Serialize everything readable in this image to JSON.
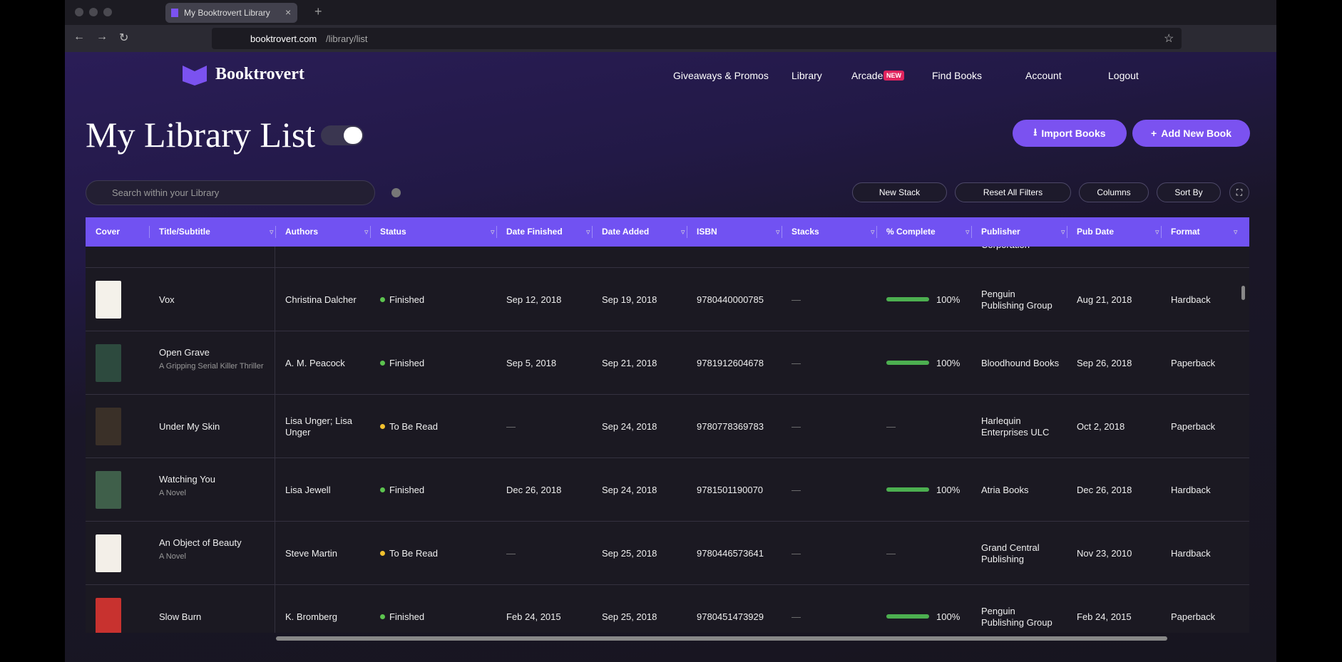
{
  "browser": {
    "tab_title": "My Booktrovert Library",
    "url_host": "booktrovert.com",
    "url_path": "/library/list"
  },
  "nav": {
    "logo": "Booktrovert",
    "items": [
      "Giveaways & Promos",
      "Library",
      "Arcade",
      "Find Books",
      "Account",
      "Logout"
    ],
    "badge": "NEW"
  },
  "header": {
    "title": "My Library List",
    "import": "Import Books",
    "add": "Add New Book",
    "search_placeholder": "Search within your Library"
  },
  "toolbar": [
    "New Stack",
    "Reset All Filters",
    "Columns",
    "Sort By"
  ],
  "table": {
    "columns": [
      "Cover",
      "Title/Subtitle",
      "Authors",
      "Status",
      "Date Finished",
      "Date Added",
      "ISBN",
      "Stacks",
      "% Complete",
      "Publisher",
      "Pub Date",
      "Format"
    ],
    "partial_row": {
      "publisher": "Corporation"
    },
    "rows": [
      {
        "cover_color": "#f4f1ea",
        "title": "Vox",
        "subtitle": null,
        "authors": "Christina Dalcher",
        "status": "Finished",
        "status_color": "#5cc34f",
        "date_finished": "Sep 12, 2018",
        "date_added": "Sep 19, 2018",
        "isbn": "9780440000785",
        "stacks": "—",
        "complete": 100,
        "complete_label": "100%",
        "publisher": "Penguin Publishing Group",
        "pub_date": "Aug 21, 2018",
        "format": "Hardback"
      },
      {
        "cover_color": "#2d4a3e",
        "title": "Open Grave",
        "subtitle": "A Gripping Serial Killer Thriller",
        "authors": "A. M. Peacock",
        "status": "Finished",
        "status_color": "#5cc34f",
        "date_finished": "Sep 5, 2018",
        "date_added": "Sep 21, 2018",
        "isbn": "9781912604678",
        "stacks": "—",
        "complete": 100,
        "complete_label": "100%",
        "publisher": "Bloodhound Books",
        "pub_date": "Sep 26, 2018",
        "format": "Paperback"
      },
      {
        "cover_color": "#3a3028",
        "title": "Under My Skin",
        "subtitle": null,
        "authors": "Lisa Unger; Lisa Unger",
        "status": "To Be Read",
        "status_color": "#f2c12e",
        "date_finished": "—",
        "date_added": "Sep 24, 2018",
        "isbn": "9780778369783",
        "stacks": "—",
        "complete": null,
        "complete_label": "—",
        "publisher": "Harlequin Enterprises ULC",
        "pub_date": "Oct 2, 2018",
        "format": "Paperback"
      },
      {
        "cover_color": "#3f5f4a",
        "title": "Watching You",
        "subtitle": "A Novel",
        "authors": "Lisa Jewell",
        "status": "Finished",
        "status_color": "#5cc34f",
        "date_finished": "Dec 26, 2018",
        "date_added": "Sep 24, 2018",
        "isbn": "9781501190070",
        "stacks": "—",
        "complete": 100,
        "complete_label": "100%",
        "publisher": "Atria Books",
        "pub_date": "Dec 26, 2018",
        "format": "Hardback"
      },
      {
        "cover_color": "#f3efe8",
        "title": "An Object of Beauty",
        "subtitle": "A Novel",
        "authors": "Steve Martin",
        "status": "To Be Read",
        "status_color": "#f2c12e",
        "date_finished": "—",
        "date_added": "Sep 25, 2018",
        "isbn": "9780446573641",
        "stacks": "—",
        "complete": null,
        "complete_label": "—",
        "publisher": "Grand Central Publishing",
        "pub_date": "Nov 23, 2010",
        "format": "Hardback"
      },
      {
        "cover_color": "#c8322f",
        "title": "Slow Burn",
        "subtitle": null,
        "authors": "K. Bromberg",
        "status": "Finished",
        "status_color": "#5cc34f",
        "date_finished": "Feb 24, 2015",
        "date_added": "Sep 25, 2018",
        "isbn": "9780451473929",
        "stacks": "—",
        "complete": 100,
        "complete_label": "100%",
        "publisher": "Penguin Publishing Group",
        "pub_date": "Feb 24, 2015",
        "format": "Paperback"
      }
    ]
  }
}
